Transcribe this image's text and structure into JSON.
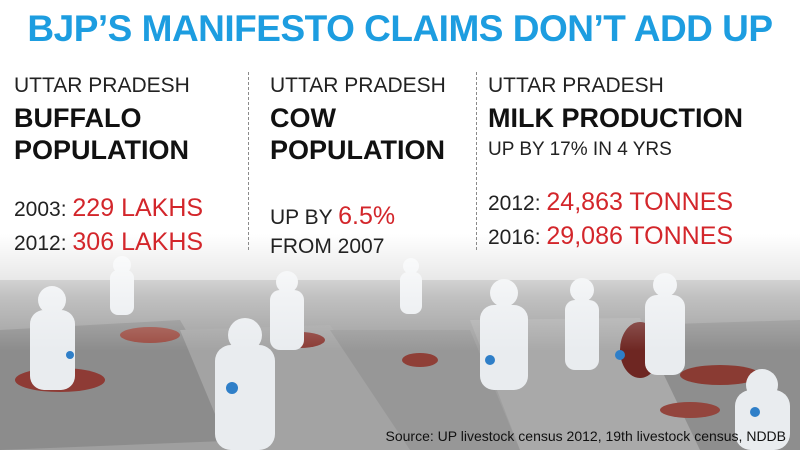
{
  "title": "BJP’S MANIFESTO CLAIMS DON’T ADD UP",
  "panels": [
    {
      "region": "UTTAR PRADESH",
      "heading_line1": "BUFFALO",
      "heading_line2": "POPULATION",
      "rows": [
        {
          "label": "2003:",
          "value": "229 LAKHS"
        },
        {
          "label": "2012:",
          "value": "306 LAKHS"
        }
      ]
    },
    {
      "region": "UTTAR PRADESH",
      "heading_line1": "COW",
      "heading_line2": "POPULATION",
      "line1_prefix": "UP BY",
      "line1_value": "6.5%",
      "line2": "FROM 2007"
    },
    {
      "region": "UTTAR PRADESH",
      "heading_line1": "MILK PRODUCTION",
      "subheading": "UP BY 17% IN 4 YRS",
      "rows": [
        {
          "label": "2012:",
          "value": "24,863 TONNES"
        },
        {
          "label": "2016:",
          "value": "29,086 TONNES"
        }
      ]
    }
  ],
  "source": "Source: UP livestock census 2012, 19th livestock census, NDDB",
  "colors": {
    "title": "#1d9de0",
    "highlight": "#d3262b",
    "text": "#222222"
  }
}
